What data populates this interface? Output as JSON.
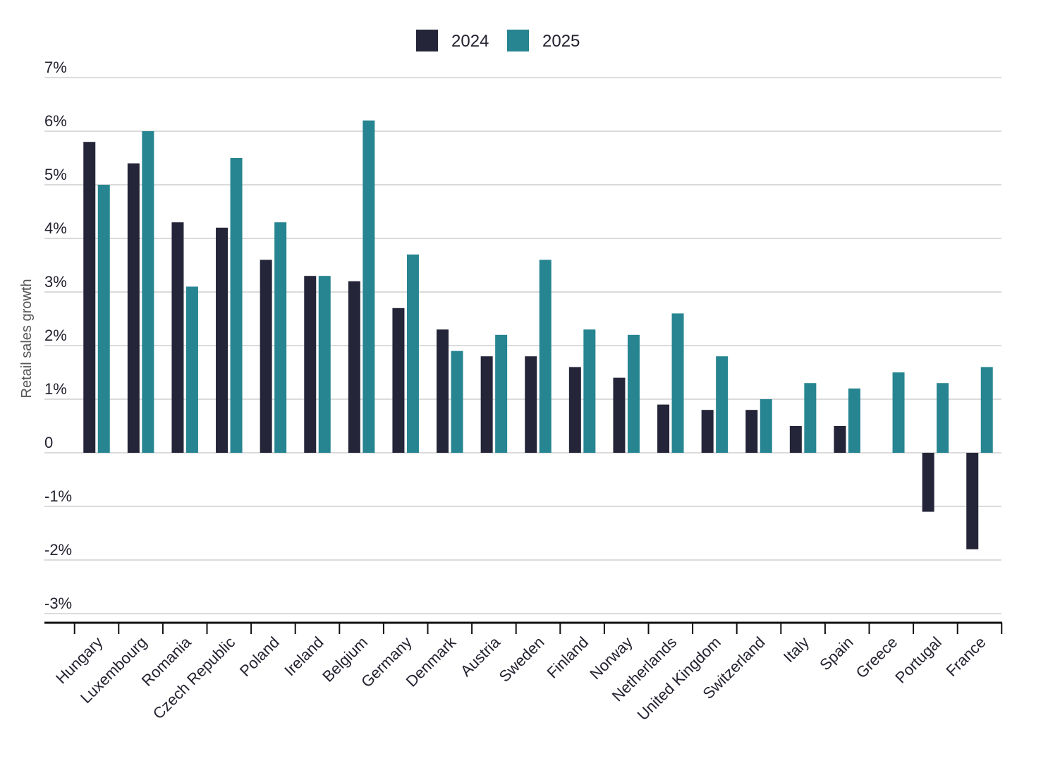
{
  "chart_data": {
    "type": "bar",
    "title": "",
    "xlabel": "",
    "ylabel": "Retail sales growth",
    "ylim": [
      -3,
      7
    ],
    "yticks": [
      7,
      6,
      5,
      4,
      3,
      2,
      1,
      0,
      -1,
      -2,
      -3
    ],
    "ytick_labels": [
      "7%",
      "6%",
      "5%",
      "4%",
      "3%",
      "2%",
      "1%",
      "0",
      "-1%",
      "-2%",
      "-3%"
    ],
    "grid": true,
    "legend_position": "top-center",
    "categories": [
      "Hungary",
      "Luxembourg",
      "Romania",
      "Czech Republic",
      "Poland",
      "Ireland",
      "Belgium",
      "Germany",
      "Denmark",
      "Austria",
      "Sweden",
      "Finland",
      "Norway",
      "Netherlands",
      "United Kingdom",
      "Switzerland",
      "Italy",
      "Spain",
      "Greece",
      "Portugal",
      "France"
    ],
    "series": [
      {
        "name": "2024",
        "color": "#252539",
        "values": [
          5.8,
          5.4,
          4.3,
          4.2,
          3.6,
          3.3,
          3.2,
          2.7,
          2.3,
          1.8,
          1.8,
          1.6,
          1.4,
          0.9,
          0.8,
          0.8,
          0.5,
          0.5,
          0.0,
          -1.1,
          -1.8
        ]
      },
      {
        "name": "2025",
        "color": "#268591",
        "values": [
          5.0,
          6.0,
          3.1,
          5.5,
          4.3,
          3.3,
          6.2,
          3.7,
          1.9,
          2.2,
          3.6,
          2.3,
          2.2,
          2.6,
          1.8,
          1.0,
          1.3,
          1.2,
          1.5,
          1.3,
          1.6
        ]
      }
    ]
  }
}
